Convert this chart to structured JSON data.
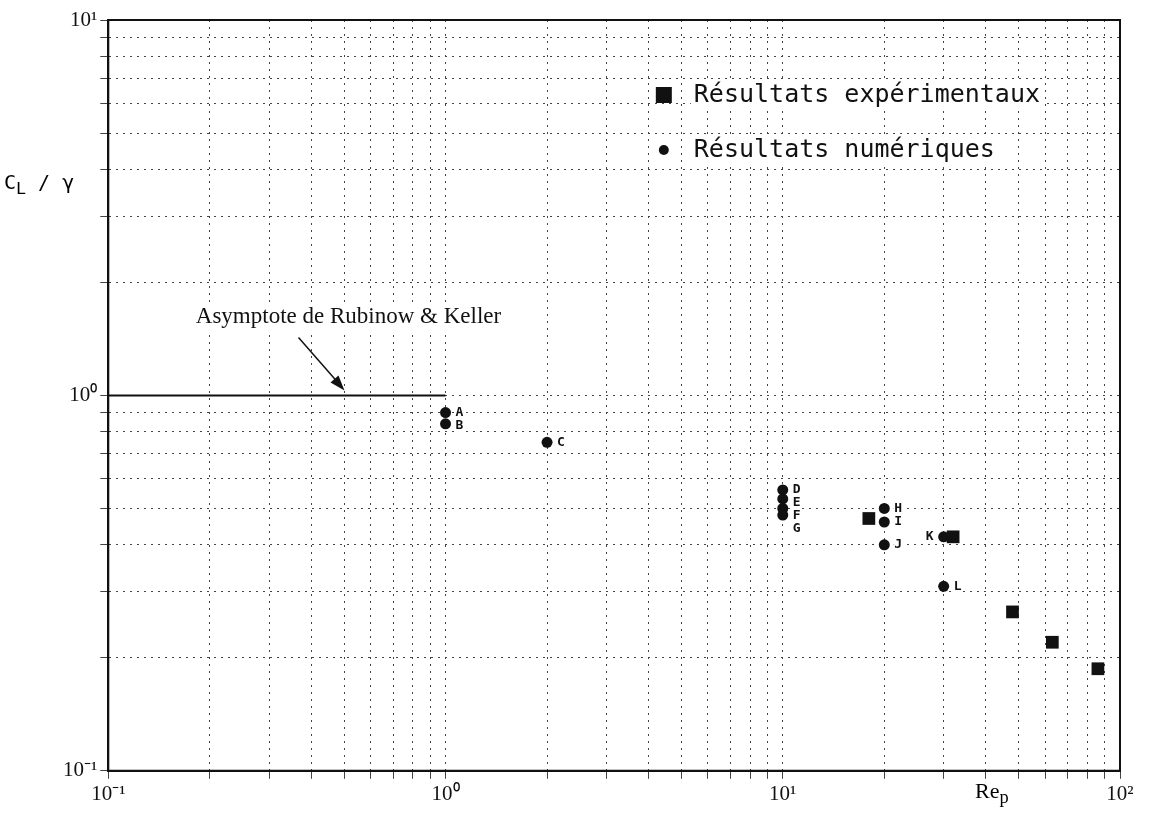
{
  "chart_data": {
    "type": "scatter",
    "xlabel": "Re$_{p}$",
    "ylabel": "C$_{L}$ / γ",
    "log": "xy",
    "grid": true,
    "legend": "top right",
    "xlim": [
      0.1,
      100
    ],
    "ylim": [
      0.1,
      10
    ],
    "xticks": [
      {
        "value": 0.1,
        "label": "10⁻¹"
      },
      {
        "value": 0.2,
        "label": null
      },
      {
        "value": 0.3,
        "label": null
      },
      {
        "value": 0.4,
        "label": null
      },
      {
        "value": 0.5,
        "label": null
      },
      {
        "value": 0.6,
        "label": null
      },
      {
        "value": 0.7,
        "label": null
      },
      {
        "value": 0.8,
        "label": null
      },
      {
        "value": 0.9,
        "label": null
      },
      {
        "value": 1,
        "label": "10⁰"
      },
      {
        "value": 2,
        "label": null
      },
      {
        "value": 3,
        "label": null
      },
      {
        "value": 4,
        "label": null
      },
      {
        "value": 5,
        "label": null
      },
      {
        "value": 6,
        "label": null
      },
      {
        "value": 7,
        "label": null
      },
      {
        "value": 8,
        "label": null
      },
      {
        "value": 9,
        "label": null
      },
      {
        "value": 10,
        "label": "10¹"
      },
      {
        "value": 20,
        "label": null
      },
      {
        "value": 30,
        "label": null
      },
      {
        "value": 40,
        "label": null
      },
      {
        "value": 50,
        "label": null
      },
      {
        "value": 60,
        "label": null
      },
      {
        "value": 70,
        "label": null
      },
      {
        "value": 80,
        "label": null
      },
      {
        "value": 90,
        "label": null
      },
      {
        "value": 100,
        "label": "10²"
      }
    ],
    "yticks": [
      {
        "value": 0.1,
        "label": "10⁻¹"
      },
      {
        "value": 0.2,
        "label": null
      },
      {
        "value": 0.3,
        "label": null
      },
      {
        "value": 0.4,
        "label": null
      },
      {
        "value": 0.5,
        "label": null
      },
      {
        "value": 0.6,
        "label": null
      },
      {
        "value": 0.7,
        "label": null
      },
      {
        "value": 0.8,
        "label": null
      },
      {
        "value": 0.9,
        "label": null
      },
      {
        "value": 1,
        "label": "10⁰"
      },
      {
        "value": 2,
        "label": null
      },
      {
        "value": 3,
        "label": null
      },
      {
        "value": 4,
        "label": null
      },
      {
        "value": 5,
        "label": null
      },
      {
        "value": 6,
        "label": null
      },
      {
        "value": 7,
        "label": null
      },
      {
        "value": 8,
        "label": null
      },
      {
        "value": 9,
        "label": null
      },
      {
        "value": 10,
        "label": "10¹"
      }
    ],
    "series": [
      {
        "name": "Résultats expérimentaux",
        "color": "#111111",
        "marker": "square",
        "x": [
          18,
          32,
          48,
          63,
          86
        ],
        "values": [
          0.47,
          0.42,
          0.265,
          0.22,
          0.187
        ]
      },
      {
        "name": "Résultats numériques",
        "color": "#111111",
        "marker": "circle",
        "x": [
          1,
          1,
          2,
          10,
          10,
          10,
          10,
          20,
          20,
          20,
          30,
          30
        ],
        "values": [
          0.9,
          0.84,
          0.75,
          0.56,
          0.53,
          0.5,
          0.48,
          0.5,
          0.46,
          0.4,
          0.42,
          0.31
        ]
      },
      {
        "type": "line",
        "color": "#111111",
        "marker": "none",
        "line_style": "solid",
        "x": [
          0.1,
          1
        ],
        "values": [
          1,
          1
        ]
      }
    ],
    "annotations": [
      {
        "text": "Asymptote de Rubinow & Keller",
        "x": 0.42,
        "y": 1
      },
      {
        "text": "A",
        "x": 1,
        "y": 0.9
      },
      {
        "text": "B",
        "x": 1,
        "y": 0.84
      },
      {
        "text": "C",
        "x": 2,
        "y": 0.75
      },
      {
        "text": "D",
        "x": 10,
        "y": 0.56
      },
      {
        "text": "E",
        "x": 10,
        "y": 0.53
      },
      {
        "text": "F",
        "x": 10,
        "y": 0.5
      },
      {
        "text": "G",
        "x": 10,
        "y": 0.48
      },
      {
        "text": "H",
        "x": 20,
        "y": 0.5
      },
      {
        "text": "I",
        "x": 20,
        "y": 0.46
      },
      {
        "text": "J",
        "x": 20,
        "y": 0.4
      },
      {
        "text": "K",
        "x": 30,
        "y": 0.42
      },
      {
        "text": "L",
        "x": 30,
        "y": 0.31
      }
    ]
  }
}
